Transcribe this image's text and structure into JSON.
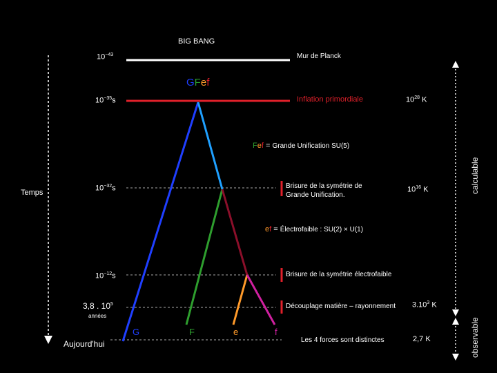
{
  "title": "BIG BANG",
  "planck": {
    "time_base": "10",
    "time_exp": "−43",
    "label": "Mur de Planck"
  },
  "gfef": {
    "g": "G",
    "f1": "F",
    "e": "e",
    "f2": "f"
  },
  "inflation": {
    "time_base": "10",
    "time_exp": "−35",
    "time_unit": "s",
    "label": "Inflation primordiale",
    "temp_base": "10",
    "temp_exp": "28",
    "temp_unit": " K"
  },
  "fef_eq": {
    "f1": "F",
    "e": "e",
    "f2": "f",
    "eq": " = ",
    "label": "Grande Unification SU(5)"
  },
  "gut_break": {
    "time_base": "10",
    "time_exp": "−32",
    "time_unit": "s",
    "line1": "Brisure de la symétrie de",
    "line2": "Grande Unification.",
    "temp_base": "10",
    "temp_exp": "16",
    "temp_unit": " K"
  },
  "ef_eq": {
    "e": "e",
    "f": "f",
    "eq": " = ",
    "label": "Électrofaible : SU(2) × U(1)"
  },
  "ew_break": {
    "time_base": "10",
    "time_exp": "−12",
    "time_unit": "s",
    "label": "Brisure de la symétrie électrofaible"
  },
  "decoupling": {
    "time": "3,8 . 10",
    "time_exp": "5",
    "years": "années",
    "label": "Découplage matière – rayonnement",
    "temp": "3.10",
    "temp_exp": "3",
    "temp_unit": " K"
  },
  "today": {
    "time": "Aujourd'hui",
    "label": "Les 4 forces sont distinctes",
    "temp": "2,7 K"
  },
  "forces": {
    "g": "G",
    "f1": "F",
    "e": "e",
    "f2": "f"
  },
  "axis": {
    "temps": "Temps",
    "calculable": "calculable",
    "observable": "observable"
  },
  "colors": {
    "g": "#1f3fff",
    "f1": "#2e9e2e",
    "e": "#ff9a2a",
    "f2": "#b0123a",
    "gfef_line": "#1fa0ff",
    "inflation_line": "#e0202a"
  }
}
